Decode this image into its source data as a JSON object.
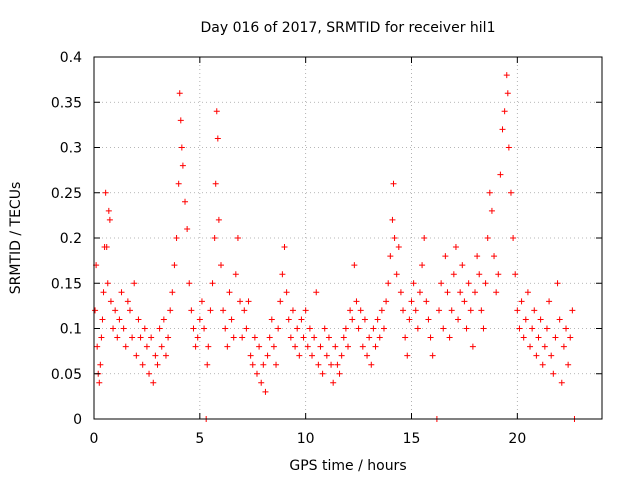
{
  "chart_data": {
    "type": "scatter",
    "title": "Day 016 of 2017, SRMTID for receiver hil1",
    "xlabel": "GPS time / hours",
    "ylabel": "SRMTID / TECUs",
    "xlim": [
      0,
      24
    ],
    "ylim": [
      0,
      0.4
    ],
    "xticks": [
      0,
      5,
      10,
      15,
      20
    ],
    "xtick_labels": [
      "0",
      "5",
      "10",
      "15",
      "20"
    ],
    "yticks": [
      0,
      0.05,
      0.1,
      0.15,
      0.2,
      0.25,
      0.3,
      0.35,
      0.4
    ],
    "ytick_labels": [
      "0",
      "0.05",
      "0.1",
      "0.15",
      "0.2",
      "0.25",
      "0.3",
      "0.35",
      "0.4"
    ],
    "grid": true,
    "marker": "plus",
    "color": "#ff0000",
    "series": [
      {
        "name": "SRMTID",
        "points": [
          [
            0.05,
            0.12
          ],
          [
            0.1,
            0.17
          ],
          [
            0.15,
            0.08
          ],
          [
            0.2,
            0.05
          ],
          [
            0.25,
            0.04
          ],
          [
            0.3,
            0.06
          ],
          [
            0.35,
            0.09
          ],
          [
            0.4,
            0.11
          ],
          [
            0.45,
            0.14
          ],
          [
            0.5,
            0.19
          ],
          [
            0.55,
            0.25
          ],
          [
            0.6,
            0.19
          ],
          [
            0.65,
            0.15
          ],
          [
            0.7,
            0.23
          ],
          [
            0.75,
            0.22
          ],
          [
            0.8,
            0.13
          ],
          [
            0.9,
            0.1
          ],
          [
            1.0,
            0.12
          ],
          [
            1.1,
            0.09
          ],
          [
            1.2,
            0.11
          ],
          [
            1.3,
            0.14
          ],
          [
            1.4,
            0.1
          ],
          [
            1.5,
            0.08
          ],
          [
            1.6,
            0.13
          ],
          [
            1.7,
            0.12
          ],
          [
            1.8,
            0.09
          ],
          [
            1.9,
            0.15
          ],
          [
            2.0,
            0.07
          ],
          [
            2.1,
            0.11
          ],
          [
            2.2,
            0.09
          ],
          [
            2.3,
            0.06
          ],
          [
            2.4,
            0.1
          ],
          [
            2.5,
            0.08
          ],
          [
            2.6,
            0.05
          ],
          [
            2.7,
            0.09
          ],
          [
            2.8,
            0.04
          ],
          [
            2.9,
            0.07
          ],
          [
            3.0,
            0.06
          ],
          [
            3.1,
            0.1
          ],
          [
            3.2,
            0.08
          ],
          [
            3.3,
            0.11
          ],
          [
            3.4,
            0.07
          ],
          [
            3.5,
            0.09
          ],
          [
            3.6,
            0.12
          ],
          [
            3.7,
            0.14
          ],
          [
            3.8,
            0.17
          ],
          [
            3.9,
            0.2
          ],
          [
            4.0,
            0.26
          ],
          [
            4.05,
            0.36
          ],
          [
            4.1,
            0.33
          ],
          [
            4.15,
            0.3
          ],
          [
            4.2,
            0.28
          ],
          [
            4.3,
            0.24
          ],
          [
            4.4,
            0.21
          ],
          [
            4.5,
            0.15
          ],
          [
            4.6,
            0.12
          ],
          [
            4.7,
            0.1
          ],
          [
            4.8,
            0.08
          ],
          [
            4.9,
            0.09
          ],
          [
            5.0,
            0.11
          ],
          [
            5.1,
            0.13
          ],
          [
            5.2,
            0.1
          ],
          [
            5.3,
            0.0
          ],
          [
            5.35,
            0.06
          ],
          [
            5.4,
            0.08
          ],
          [
            5.5,
            0.12
          ],
          [
            5.6,
            0.15
          ],
          [
            5.7,
            0.2
          ],
          [
            5.75,
            0.26
          ],
          [
            5.8,
            0.34
          ],
          [
            5.85,
            0.31
          ],
          [
            5.9,
            0.22
          ],
          [
            6.0,
            0.17
          ],
          [
            6.1,
            0.12
          ],
          [
            6.2,
            0.1
          ],
          [
            6.3,
            0.08
          ],
          [
            6.4,
            0.14
          ],
          [
            6.5,
            0.11
          ],
          [
            6.6,
            0.09
          ],
          [
            6.7,
            0.16
          ],
          [
            6.8,
            0.2
          ],
          [
            6.9,
            0.13
          ],
          [
            7.0,
            0.09
          ],
          [
            7.1,
            0.12
          ],
          [
            7.2,
            0.1
          ],
          [
            7.3,
            0.13
          ],
          [
            7.4,
            0.07
          ],
          [
            7.5,
            0.06
          ],
          [
            7.6,
            0.09
          ],
          [
            7.7,
            0.05
          ],
          [
            7.8,
            0.08
          ],
          [
            7.9,
            0.04
          ],
          [
            8.0,
            0.06
          ],
          [
            8.1,
            0.03
          ],
          [
            8.2,
            0.07
          ],
          [
            8.3,
            0.09
          ],
          [
            8.4,
            0.11
          ],
          [
            8.5,
            0.08
          ],
          [
            8.6,
            0.06
          ],
          [
            8.7,
            0.1
          ],
          [
            8.8,
            0.13
          ],
          [
            8.9,
            0.16
          ],
          [
            9.0,
            0.19
          ],
          [
            9.1,
            0.14
          ],
          [
            9.2,
            0.11
          ],
          [
            9.3,
            0.09
          ],
          [
            9.4,
            0.12
          ],
          [
            9.5,
            0.08
          ],
          [
            9.6,
            0.1
          ],
          [
            9.7,
            0.07
          ],
          [
            9.8,
            0.11
          ],
          [
            9.9,
            0.09
          ],
          [
            10.0,
            0.12
          ],
          [
            10.1,
            0.08
          ],
          [
            10.2,
            0.1
          ],
          [
            10.3,
            0.07
          ],
          [
            10.4,
            0.09
          ],
          [
            10.5,
            0.14
          ],
          [
            10.6,
            0.06
          ],
          [
            10.7,
            0.08
          ],
          [
            10.8,
            0.05
          ],
          [
            10.9,
            0.1
          ],
          [
            11.0,
            0.07
          ],
          [
            11.1,
            0.09
          ],
          [
            11.2,
            0.06
          ],
          [
            11.3,
            0.04
          ],
          [
            11.4,
            0.08
          ],
          [
            11.5,
            0.06
          ],
          [
            11.6,
            0.05
          ],
          [
            11.7,
            0.07
          ],
          [
            11.8,
            0.09
          ],
          [
            11.9,
            0.1
          ],
          [
            12.0,
            0.08
          ],
          [
            12.1,
            0.12
          ],
          [
            12.2,
            0.11
          ],
          [
            12.3,
            0.17
          ],
          [
            12.4,
            0.13
          ],
          [
            12.5,
            0.1
          ],
          [
            12.6,
            0.12
          ],
          [
            12.7,
            0.08
          ],
          [
            12.8,
            0.11
          ],
          [
            12.9,
            0.07
          ],
          [
            13.0,
            0.09
          ],
          [
            13.1,
            0.06
          ],
          [
            13.2,
            0.1
          ],
          [
            13.3,
            0.08
          ],
          [
            13.4,
            0.11
          ],
          [
            13.5,
            0.09
          ],
          [
            13.6,
            0.12
          ],
          [
            13.7,
            0.1
          ],
          [
            13.8,
            0.13
          ],
          [
            13.9,
            0.15
          ],
          [
            14.0,
            0.18
          ],
          [
            14.1,
            0.22
          ],
          [
            14.15,
            0.26
          ],
          [
            14.2,
            0.2
          ],
          [
            14.3,
            0.16
          ],
          [
            14.4,
            0.19
          ],
          [
            14.5,
            0.14
          ],
          [
            14.6,
            0.12
          ],
          [
            14.7,
            0.09
          ],
          [
            14.8,
            0.07
          ],
          [
            14.9,
            0.11
          ],
          [
            15.0,
            0.13
          ],
          [
            15.1,
            0.15
          ],
          [
            15.2,
            0.12
          ],
          [
            15.3,
            0.1
          ],
          [
            15.4,
            0.14
          ],
          [
            15.5,
            0.17
          ],
          [
            15.6,
            0.2
          ],
          [
            15.7,
            0.13
          ],
          [
            15.8,
            0.11
          ],
          [
            15.9,
            0.09
          ],
          [
            16.0,
            0.07
          ],
          [
            16.2,
            0.0
          ],
          [
            16.3,
            0.12
          ],
          [
            16.4,
            0.15
          ],
          [
            16.5,
            0.1
          ],
          [
            16.6,
            0.18
          ],
          [
            16.7,
            0.14
          ],
          [
            16.8,
            0.09
          ],
          [
            16.9,
            0.12
          ],
          [
            17.0,
            0.16
          ],
          [
            17.1,
            0.19
          ],
          [
            17.2,
            0.11
          ],
          [
            17.3,
            0.14
          ],
          [
            17.4,
            0.17
          ],
          [
            17.5,
            0.13
          ],
          [
            17.6,
            0.1
          ],
          [
            17.7,
            0.15
          ],
          [
            17.8,
            0.12
          ],
          [
            17.9,
            0.08
          ],
          [
            18.0,
            0.14
          ],
          [
            18.1,
            0.18
          ],
          [
            18.2,
            0.16
          ],
          [
            18.3,
            0.12
          ],
          [
            18.4,
            0.1
          ],
          [
            18.5,
            0.15
          ],
          [
            18.6,
            0.2
          ],
          [
            18.7,
            0.25
          ],
          [
            18.8,
            0.23
          ],
          [
            18.9,
            0.18
          ],
          [
            19.0,
            0.14
          ],
          [
            19.1,
            0.16
          ],
          [
            19.2,
            0.27
          ],
          [
            19.3,
            0.32
          ],
          [
            19.4,
            0.34
          ],
          [
            19.5,
            0.38
          ],
          [
            19.55,
            0.36
          ],
          [
            19.6,
            0.3
          ],
          [
            19.7,
            0.25
          ],
          [
            19.8,
            0.2
          ],
          [
            19.9,
            0.16
          ],
          [
            20.0,
            0.12
          ],
          [
            20.1,
            0.1
          ],
          [
            20.2,
            0.13
          ],
          [
            20.3,
            0.09
          ],
          [
            20.4,
            0.11
          ],
          [
            20.5,
            0.14
          ],
          [
            20.6,
            0.08
          ],
          [
            20.7,
            0.1
          ],
          [
            20.8,
            0.12
          ],
          [
            20.9,
            0.07
          ],
          [
            21.0,
            0.09
          ],
          [
            21.1,
            0.11
          ],
          [
            21.2,
            0.06
          ],
          [
            21.3,
            0.08
          ],
          [
            21.4,
            0.1
          ],
          [
            21.5,
            0.13
          ],
          [
            21.6,
            0.07
          ],
          [
            21.7,
            0.05
          ],
          [
            21.8,
            0.09
          ],
          [
            21.9,
            0.15
          ],
          [
            22.0,
            0.11
          ],
          [
            22.1,
            0.04
          ],
          [
            22.2,
            0.08
          ],
          [
            22.3,
            0.1
          ],
          [
            22.4,
            0.06
          ],
          [
            22.5,
            0.09
          ],
          [
            22.6,
            0.12
          ],
          [
            22.7,
            0.0
          ]
        ]
      }
    ]
  }
}
